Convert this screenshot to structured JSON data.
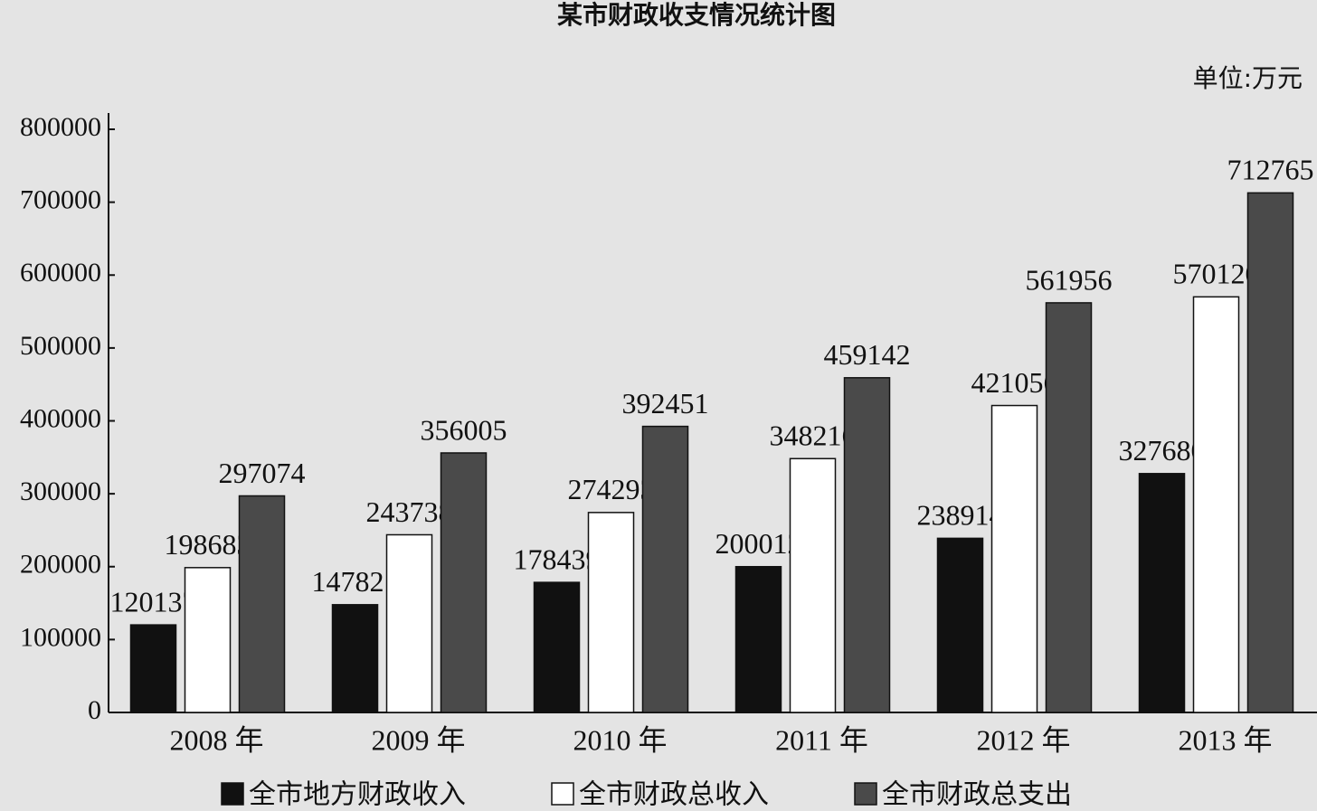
{
  "chart_data": {
    "type": "bar",
    "title": "某市财政收支情况统计图",
    "unit": "单位:万元",
    "categories": [
      "2008 年",
      "2009 年",
      "2010 年",
      "2011 年",
      "2012 年",
      "2013 年"
    ],
    "series": [
      {
        "name": "全市地方财政收入",
        "color": "#111111",
        "values": [
          120137,
          147821,
          178439,
          200012,
          238914,
          327680
        ]
      },
      {
        "name": "全市财政总收入",
        "color": "#ffffff",
        "values": [
          198683,
          243738,
          274293,
          348216,
          421056,
          570120
        ]
      },
      {
        "name": "全市财政总支出",
        "color": "#4a4a4a",
        "values": [
          297074,
          356005,
          392451,
          459142,
          561956,
          712765
        ]
      }
    ],
    "ylim": [
      0,
      800000
    ],
    "yticks": [
      0,
      100000,
      200000,
      300000,
      400000,
      500000,
      600000,
      700000,
      800000
    ]
  }
}
